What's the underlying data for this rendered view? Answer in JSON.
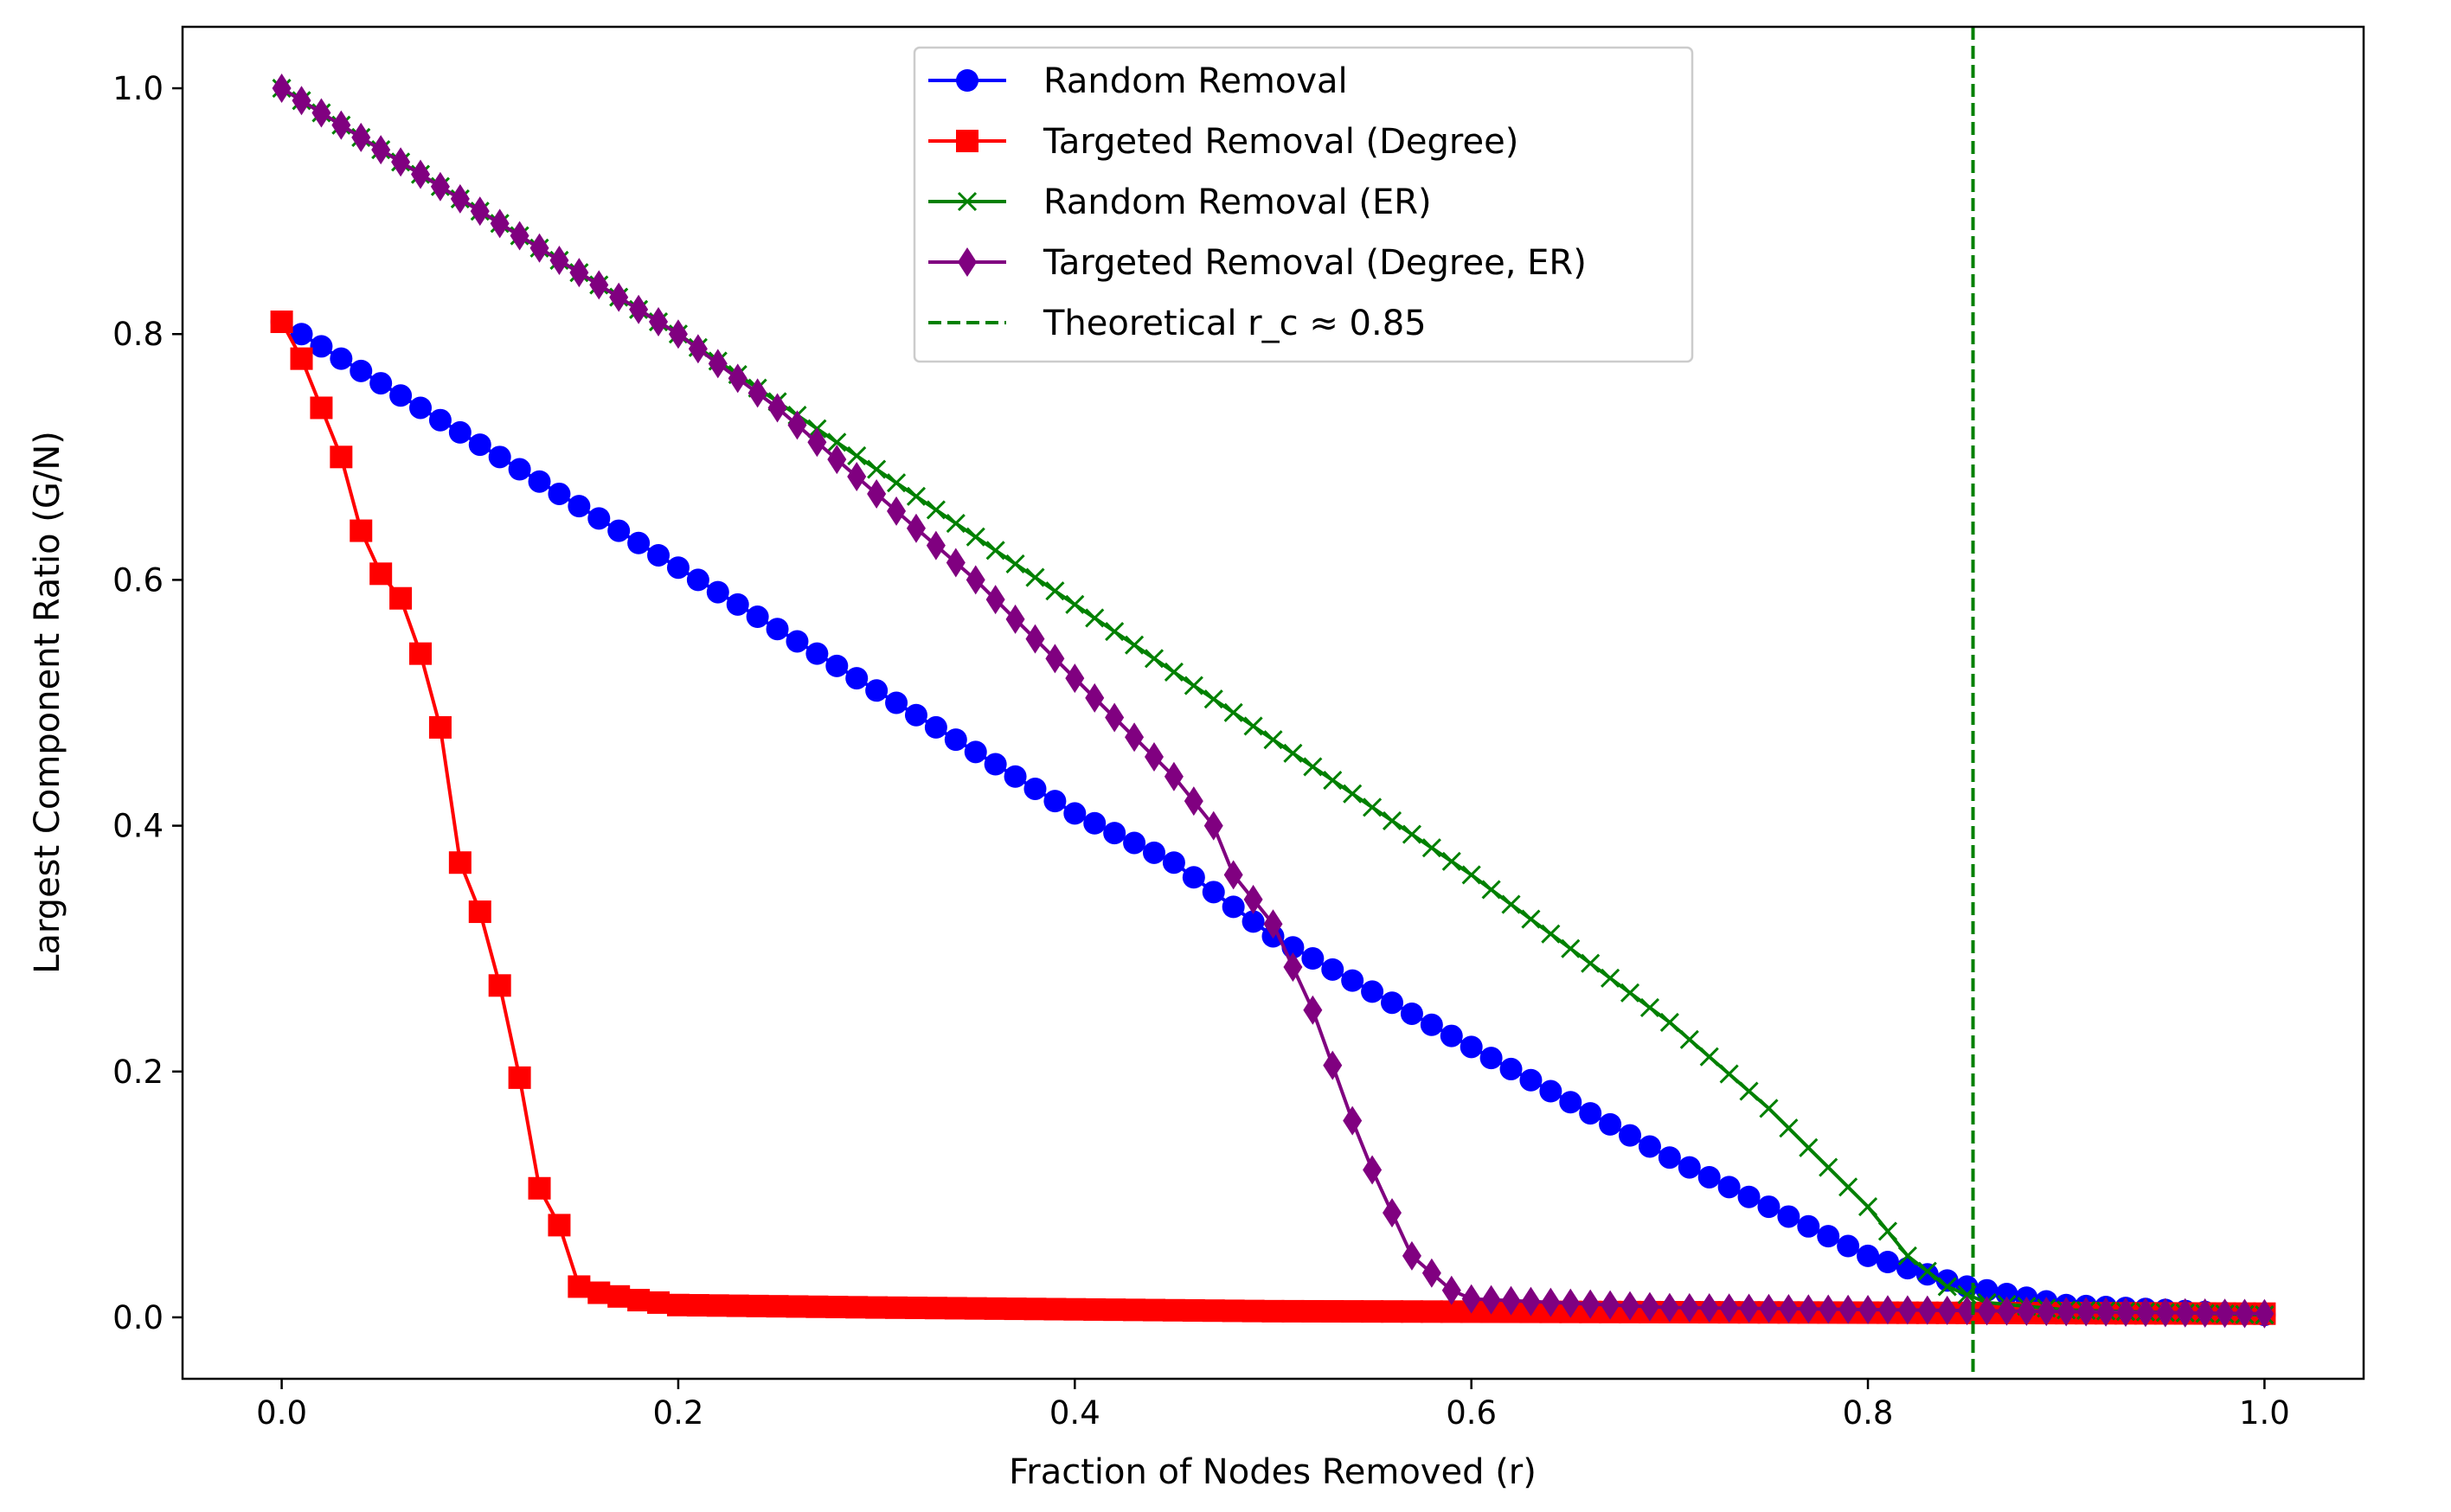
{
  "chart_data": {
    "type": "line",
    "title": "",
    "xlabel": "Fraction of Nodes Removed (r)",
    "ylabel": "Largest Component Ratio (G/N)",
    "xlim": [
      -0.05,
      1.05
    ],
    "ylim": [
      -0.05,
      1.05
    ],
    "xticks": [
      0.0,
      0.2,
      0.4,
      0.6,
      0.8,
      1.0
    ],
    "yticks": [
      0.0,
      0.2,
      0.4,
      0.6,
      0.8,
      1.0
    ],
    "xtick_labels": [
      "0.0",
      "0.2",
      "0.4",
      "0.6",
      "0.8",
      "1.0"
    ],
    "ytick_labels": [
      "0.0",
      "0.2",
      "0.4",
      "0.6",
      "0.8",
      "1.0"
    ],
    "grid": false,
    "legend_position": "top-center",
    "x_step": 0.01,
    "series": [
      {
        "name": "Random Removal",
        "color": "#0000ff",
        "marker": "circle",
        "knots": [
          [
            0,
            0.81
          ],
          [
            0.01,
            0.8
          ],
          [
            0.05,
            0.76
          ],
          [
            0.1,
            0.71
          ],
          [
            0.2,
            0.61
          ],
          [
            0.3,
            0.51
          ],
          [
            0.4,
            0.41
          ],
          [
            0.45,
            0.37
          ],
          [
            0.5,
            0.31
          ],
          [
            0.6,
            0.22
          ],
          [
            0.7,
            0.13
          ],
          [
            0.75,
            0.09
          ],
          [
            0.8,
            0.05
          ],
          [
            0.85,
            0.025
          ],
          [
            0.9,
            0.01
          ],
          [
            1.0,
            0.002
          ]
        ]
      },
      {
        "name": "Targeted Removal (Degree)",
        "color": "#ff0000",
        "marker": "square",
        "knots": [
          [
            0,
            0.81
          ],
          [
            0.01,
            0.78
          ],
          [
            0.02,
            0.74
          ],
          [
            0.03,
            0.7
          ],
          [
            0.04,
            0.64
          ],
          [
            0.05,
            0.605
          ],
          [
            0.06,
            0.585
          ],
          [
            0.07,
            0.54
          ],
          [
            0.08,
            0.48
          ],
          [
            0.09,
            0.37
          ],
          [
            0.1,
            0.33
          ],
          [
            0.11,
            0.27
          ],
          [
            0.12,
            0.195
          ],
          [
            0.13,
            0.105
          ],
          [
            0.14,
            0.075
          ],
          [
            0.15,
            0.025
          ],
          [
            0.16,
            0.02
          ],
          [
            0.18,
            0.014
          ],
          [
            0.2,
            0.01
          ],
          [
            0.3,
            0.008
          ],
          [
            0.5,
            0.005
          ],
          [
            1.0,
            0.003
          ]
        ]
      },
      {
        "name": "Random Removal (ER)",
        "color": "#008000",
        "marker": "x",
        "knots": [
          [
            0,
            1.0
          ],
          [
            0.1,
            0.9
          ],
          [
            0.2,
            0.8
          ],
          [
            0.3,
            0.69
          ],
          [
            0.4,
            0.58
          ],
          [
            0.5,
            0.47
          ],
          [
            0.6,
            0.36
          ],
          [
            0.7,
            0.24
          ],
          [
            0.75,
            0.17
          ],
          [
            0.8,
            0.09
          ],
          [
            0.82,
            0.05
          ],
          [
            0.84,
            0.025
          ],
          [
            0.86,
            0.012
          ],
          [
            0.9,
            0.006
          ],
          [
            1.0,
            0.002
          ]
        ]
      },
      {
        "name": "Targeted Removal (Degree, ER)",
        "color": "#800080",
        "marker": "diamond",
        "knots": [
          [
            0,
            1.0
          ],
          [
            0.1,
            0.9
          ],
          [
            0.2,
            0.8
          ],
          [
            0.25,
            0.74
          ],
          [
            0.3,
            0.67
          ],
          [
            0.35,
            0.6
          ],
          [
            0.4,
            0.52
          ],
          [
            0.45,
            0.44
          ],
          [
            0.47,
            0.4
          ],
          [
            0.48,
            0.36
          ],
          [
            0.5,
            0.32
          ],
          [
            0.52,
            0.25
          ],
          [
            0.54,
            0.16
          ],
          [
            0.55,
            0.12
          ],
          [
            0.57,
            0.05
          ],
          [
            0.59,
            0.022
          ],
          [
            0.6,
            0.015
          ],
          [
            0.7,
            0.008
          ],
          [
            1.0,
            0.003
          ]
        ]
      }
    ],
    "reference_lines": [
      {
        "name": "Theoretical r_c ≈ 0.85",
        "x": 0.853,
        "color": "#008000",
        "style": "dashed"
      }
    ]
  }
}
